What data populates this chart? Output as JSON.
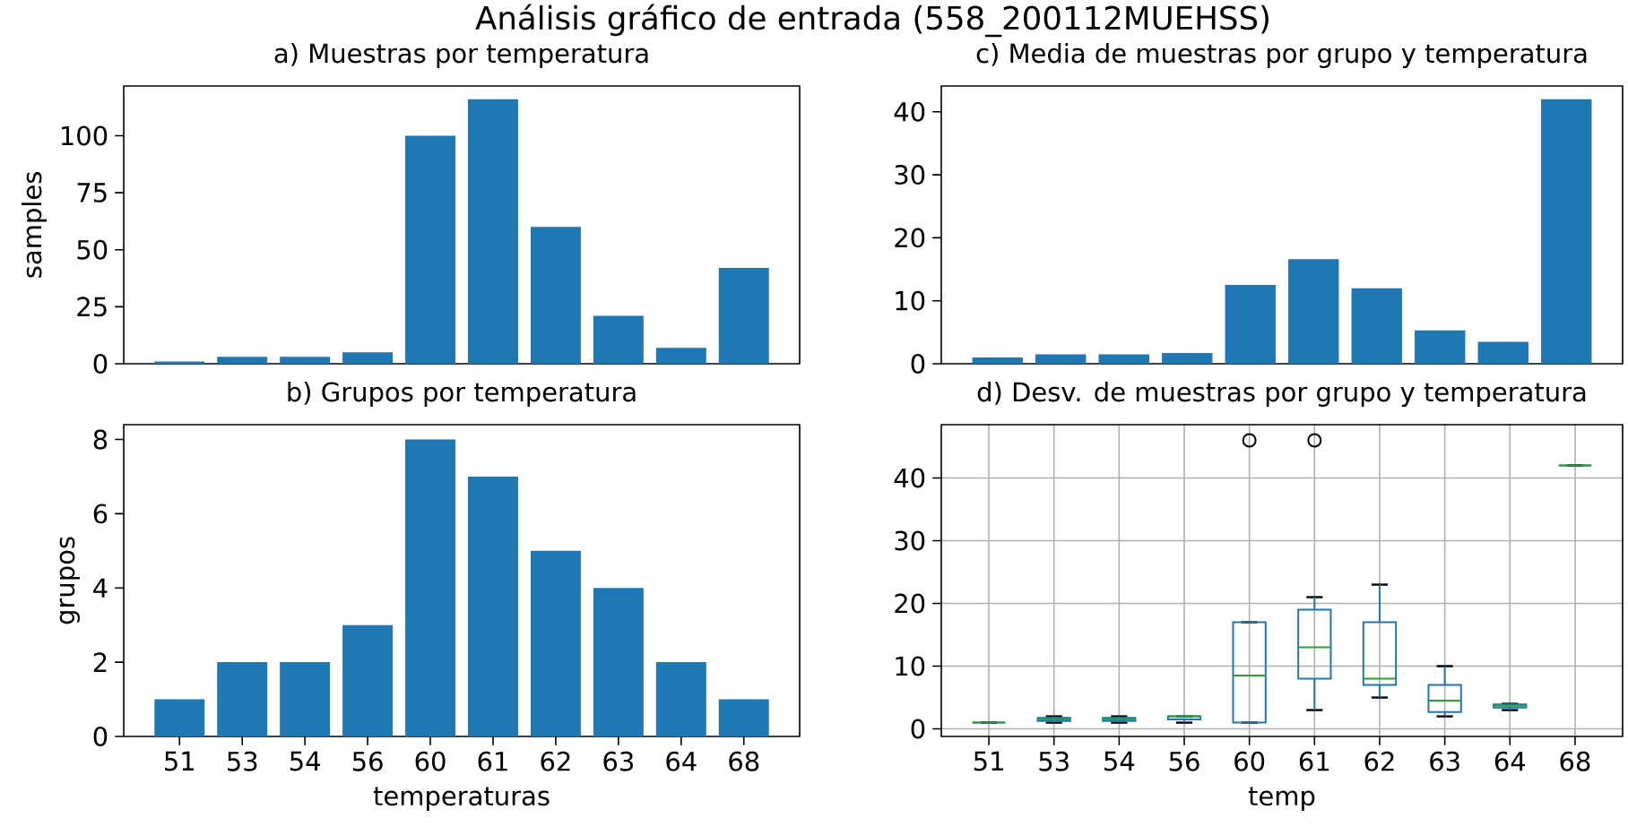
{
  "chart_data": [
    {
      "type": "other",
      "title": "Análisis gráfico de entrada (558_200112MUEHSS)"
    },
    {
      "type": "bar",
      "title": "a) Muestras por temperatura",
      "ylabel": "samples",
      "categories": [
        "51",
        "53",
        "54",
        "56",
        "60",
        "61",
        "62",
        "63",
        "64",
        "68"
      ],
      "values": [
        1,
        3,
        3,
        5,
        100,
        116,
        60,
        21,
        7,
        42
      ],
      "color": "#1f77b4",
      "ylim": [
        0,
        121.8
      ],
      "yticks": [
        0,
        25,
        50,
        75,
        100
      ],
      "tick_labels": "y"
    },
    {
      "type": "bar",
      "title": "c) Media de muestras por grupo y temperatura",
      "categories": [
        "51",
        "53",
        "54",
        "56",
        "60",
        "61",
        "62",
        "63",
        "64",
        "68"
      ],
      "values": [
        1,
        1.5,
        1.5,
        1.7,
        12.5,
        16.6,
        12,
        5.3,
        3.5,
        42
      ],
      "color": "#1f77b4",
      "ylim": [
        0,
        44.1
      ],
      "yticks": [
        0,
        10,
        20,
        30,
        40
      ],
      "tick_labels": "y"
    },
    {
      "type": "bar",
      "title": "b) Grupos por temperatura",
      "xlabel": "temperaturas",
      "ylabel": "grupos",
      "categories": [
        "51",
        "53",
        "54",
        "56",
        "60",
        "61",
        "62",
        "63",
        "64",
        "68"
      ],
      "values": [
        1,
        2,
        2,
        3,
        8,
        7,
        5,
        4,
        2,
        1
      ],
      "color": "#1f77b4",
      "ylim": [
        0,
        8.4
      ],
      "yticks": [
        0,
        2,
        4,
        6,
        8
      ]
    },
    {
      "type": "box",
      "title": "d) Desv. de muestras por grupo y temperatura",
      "xlabel": "temp",
      "categories": [
        "51",
        "53",
        "54",
        "56",
        "60",
        "61",
        "62",
        "63",
        "64",
        "68"
      ],
      "series": [
        {
          "color": "#1f77b4",
          "boxes": [
            {
              "low": 1,
              "q1": 1,
              "median": 1,
              "q3": 1,
              "high": 1
            },
            {
              "low": 1,
              "q1": 1.25,
              "median": 1.5,
              "q3": 1.75,
              "high": 2
            },
            {
              "low": 1,
              "q1": 1.25,
              "median": 1.5,
              "q3": 1.75,
              "high": 2
            },
            {
              "low": 1,
              "q1": 1.5,
              "median": 2,
              "q3": 2,
              "high": 2
            },
            {
              "low": 1,
              "q1": 1,
              "median": 8.5,
              "q3": 17,
              "high": 17,
              "outliers": [
                46
              ]
            },
            {
              "low": 3,
              "q1": 8,
              "median": 13,
              "q3": 19,
              "high": 21,
              "outliers": [
                46
              ]
            },
            {
              "low": 5,
              "q1": 7,
              "median": 8,
              "q3": 17,
              "high": 23
            },
            {
              "low": 2,
              "q1": 2.7,
              "median": 4.5,
              "q3": 7,
              "high": 10
            },
            {
              "low": 3,
              "q1": 3.4,
              "median": 3.7,
              "q3": 3.9,
              "high": 4
            },
            {
              "low": 42,
              "q1": 42,
              "median": 42,
              "q3": 42,
              "high": 42
            }
          ]
        }
      ],
      "ylim": [
        -1.2,
        48.5
      ],
      "yticks": [
        0,
        10,
        20,
        30,
        40
      ],
      "grid": true
    }
  ]
}
